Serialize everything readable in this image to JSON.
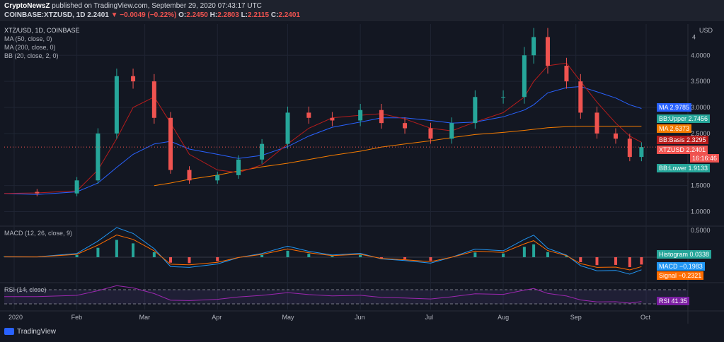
{
  "header": {
    "publisher": "CryptoNewsZ",
    "published_text": "published on TradingView.com, September 29, 2020 07:43:17 UTC",
    "symbol": "COINBASE:XTZUSD, 1D",
    "last": "2.2401",
    "change": "−0.0049 (−0.22%)",
    "o_label": "O:",
    "o_value": "2.2450",
    "h_label": "H:",
    "h_value": "2.2803",
    "l_label": "L:",
    "l_value": "2.2115",
    "c_label": "C:",
    "c_value": "2.2401"
  },
  "legend": {
    "title": "XTZ/USD, 1D, COINBASE",
    "ma50": "MA (50, close, 0)",
    "ma200": "MA (200, close, 0)",
    "bb": "BB (20, close, 2, 0)"
  },
  "price_axis": {
    "unit": "USD",
    "ticks": [
      "4",
      "4.0000",
      "3.5000",
      "3.0000",
      "2.5000",
      "1.5000",
      "1.0000"
    ]
  },
  "tags": [
    {
      "label": "MA",
      "value": "2.9785",
      "color": "#2962ff"
    },
    {
      "label": "BB:Upper",
      "value": "2.7456",
      "color": "#26a69a"
    },
    {
      "label": "MA",
      "value": "2.6373",
      "color": "#f57c00"
    },
    {
      "label": "BB:Basis",
      "value": "2.3295",
      "color": "#b71c1c"
    },
    {
      "label": "XTZUSD",
      "value": "2.2401",
      "color": "#ef5350"
    },
    {
      "label": "",
      "value": "16:16:46",
      "color": "#ef5350"
    },
    {
      "label": "BB:Lower",
      "value": "1.9133",
      "color": "#26a69a"
    }
  ],
  "macd": {
    "title": "MACD (12, 26, close, 9)",
    "axis_tick": "0.5000",
    "tags": [
      {
        "label": "Histogram",
        "value": "0.0338",
        "color": "#26a69a"
      },
      {
        "label": "MACD",
        "value": "−0.1983",
        "color": "#2196f3"
      },
      {
        "label": "Signal",
        "value": "−0.2321",
        "color": "#ff6d00"
      }
    ]
  },
  "rsi": {
    "title": "RSI (14, close)",
    "tags": [
      {
        "label": "RSI",
        "value": "41.35",
        "color": "#7b1fa2"
      }
    ]
  },
  "time_axis": [
    "2020",
    "Feb",
    "Mar",
    "Apr",
    "May",
    "Jun",
    "Jul",
    "Aug",
    "Sep",
    "Oct"
  ],
  "footer": {
    "brand": "TradingView"
  },
  "chart_data": {
    "type": "line",
    "symbol": "XTZUSD",
    "x": [
      "2020-01-01",
      "2020-01-15",
      "2020-02-01",
      "2020-02-10",
      "2020-02-18",
      "2020-02-25",
      "2020-03-05",
      "2020-03-12",
      "2020-03-20",
      "2020-04-01",
      "2020-04-10",
      "2020-04-20",
      "2020-05-01",
      "2020-05-10",
      "2020-05-20",
      "2020-06-01",
      "2020-06-10",
      "2020-06-20",
      "2020-07-01",
      "2020-07-10",
      "2020-07-20",
      "2020-08-01",
      "2020-08-10",
      "2020-08-14",
      "2020-08-20",
      "2020-08-28",
      "2020-09-03",
      "2020-09-10",
      "2020-09-18",
      "2020-09-24",
      "2020-09-29"
    ],
    "close": [
      1.38,
      1.35,
      1.6,
      2.5,
      3.6,
      3.5,
      2.8,
      1.8,
      1.6,
      1.7,
      2.0,
      2.3,
      2.9,
      2.8,
      2.75,
      2.95,
      2.7,
      2.6,
      2.4,
      2.7,
      3.2,
      3.2,
      4.0,
      4.35,
      3.8,
      3.5,
      2.9,
      2.5,
      2.4,
      2.05,
      2.24
    ],
    "series": [
      {
        "name": "MA (50, close, 0)",
        "values": [
          1.35,
          1.33,
          1.38,
          1.55,
          1.85,
          2.1,
          2.3,
          2.35,
          2.2,
          2.1,
          2.02,
          2.08,
          2.25,
          2.45,
          2.62,
          2.72,
          2.8,
          2.8,
          2.75,
          2.7,
          2.72,
          2.82,
          2.95,
          3.05,
          3.28,
          3.38,
          3.4,
          3.3,
          3.18,
          3.05,
          2.98
        ]
      },
      {
        "name": "MA (200, close, 0)",
        "values": [
          null,
          null,
          null,
          null,
          null,
          null,
          1.5,
          1.55,
          1.62,
          1.7,
          1.78,
          1.86,
          1.93,
          2.0,
          2.08,
          2.16,
          2.24,
          2.3,
          2.36,
          2.42,
          2.48,
          2.52,
          2.56,
          2.58,
          2.61,
          2.63,
          2.64,
          2.64,
          2.64,
          2.64,
          2.64
        ]
      },
      {
        "name": "BB (20, close, 2, 0)",
        "values": [
          1.35,
          1.36,
          1.4,
          1.8,
          2.4,
          3.0,
          3.2,
          2.7,
          2.1,
          1.8,
          1.75,
          1.9,
          2.3,
          2.6,
          2.8,
          2.85,
          2.88,
          2.78,
          2.6,
          2.55,
          2.72,
          2.9,
          3.2,
          3.5,
          3.8,
          3.85,
          3.5,
          3.1,
          2.7,
          2.45,
          2.33
        ]
      }
    ],
    "ylim": [
      0.75,
      4.6
    ],
    "grid": true
  }
}
